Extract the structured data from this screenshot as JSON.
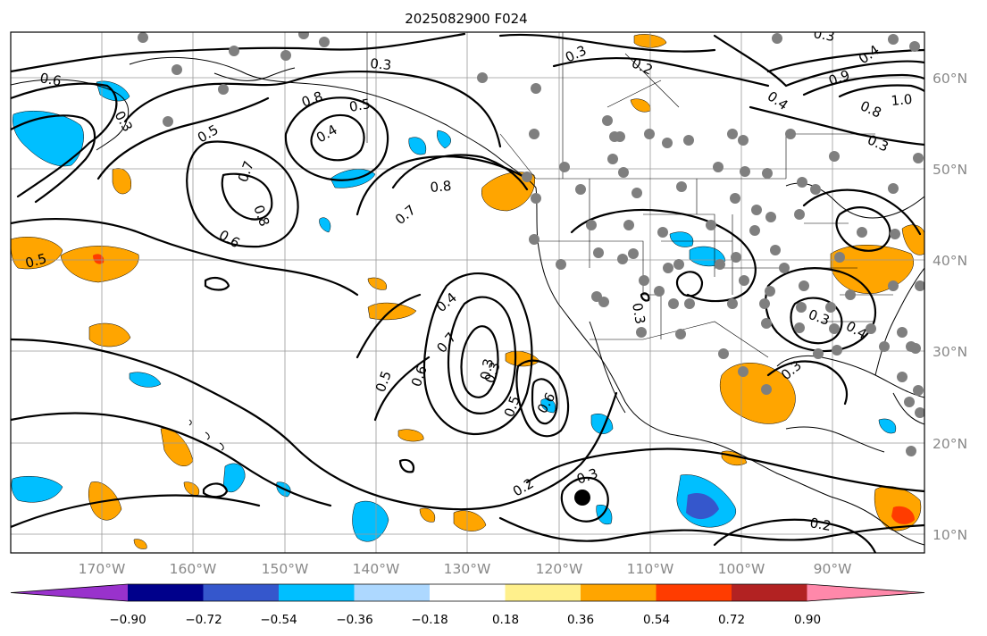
{
  "title": "2025082900 F024",
  "lat_labels": [
    "60°N",
    "50°N",
    "40°N",
    "30°N",
    "20°N",
    "10°N"
  ],
  "lon_labels": [
    "170°W",
    "160°W",
    "150°W",
    "140°W",
    "130°W",
    "120°W",
    "110°W",
    "100°W",
    "90°W"
  ],
  "colorbar": {
    "colors": [
      "#9932cc",
      "#00008b",
      "#3557cc",
      "#00bfff",
      "#add8ff",
      "#ffffff",
      "#fff08c",
      "#ffa500",
      "#ff3c00",
      "#b22222",
      "#ff88aa"
    ],
    "tick_labels": [
      "−0.90",
      "−0.72",
      "−0.54",
      "−0.36",
      "−0.18",
      "0.18",
      "0.36",
      "0.54",
      "0.72",
      "0.90"
    ]
  },
  "contour_labels": [
    {
      "text": "0.6"
    },
    {
      "text": "0.3"
    },
    {
      "text": "0.8"
    },
    {
      "text": "0.5"
    },
    {
      "text": "0.4"
    },
    {
      "text": "0.7"
    },
    {
      "text": "0.8"
    },
    {
      "text": "0.6"
    },
    {
      "text": "0.5"
    },
    {
      "text": "0.3"
    },
    {
      "text": "0.8"
    },
    {
      "text": "0.7"
    },
    {
      "text": "0.4"
    },
    {
      "text": "0.7"
    },
    {
      "text": "0.6"
    },
    {
      "text": "0.5"
    },
    {
      "text": "0.3"
    },
    {
      "text": "0.5"
    },
    {
      "text": "0.6"
    },
    {
      "text": "0.3"
    },
    {
      "text": "0.2"
    },
    {
      "text": "0.3"
    },
    {
      "text": "0.2"
    },
    {
      "text": "0.3"
    },
    {
      "text": "0.3"
    },
    {
      "text": "0.4"
    },
    {
      "text": "0.3"
    },
    {
      "text": "0.8"
    },
    {
      "text": "1.0"
    },
    {
      "text": "0.9"
    },
    {
      "text": "0.4"
    },
    {
      "text": "0.3"
    },
    {
      "text": "0.4"
    },
    {
      "text": "0.3"
    },
    {
      "text": "0.2"
    },
    {
      "text": "0.5"
    },
    {
      "text": "0.3"
    }
  ],
  "colors": {
    "grid": "#999999",
    "station": "#7f7f7f",
    "shade_neg_light": "#00bfff",
    "shade_neg_dark": "#3557cc",
    "shade_pos": "#ffa500",
    "shade_pos_strong": "#ff3c00",
    "marker": "#000000"
  }
}
